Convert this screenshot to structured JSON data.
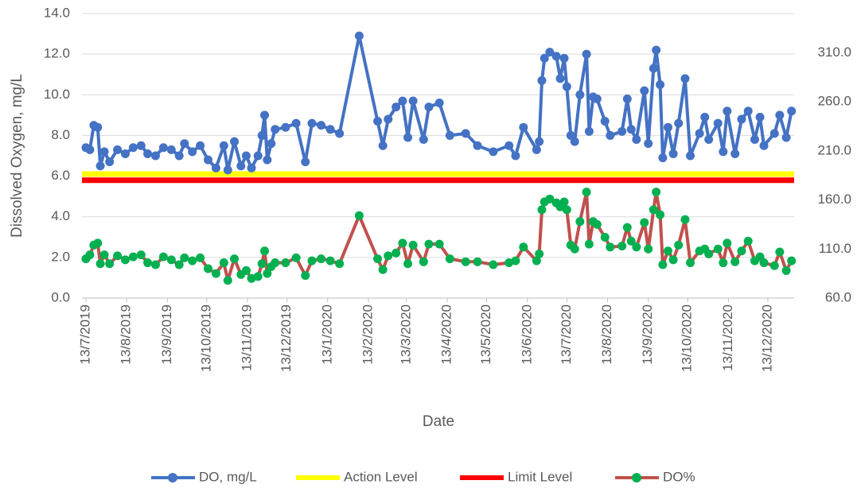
{
  "chart_data": {
    "type": "line",
    "y_axis_label": "Dissolved Oxygen, mg/L",
    "x_axis_label": "Date",
    "xlim": [
      "2019-07-10",
      "2021-01-02"
    ],
    "xticks": [
      {
        "value": "2019-07-13",
        "label": "13/7/2019"
      },
      {
        "value": "2019-08-13",
        "label": "13/8/2019"
      },
      {
        "value": "2019-09-13",
        "label": "13/9/2019"
      },
      {
        "value": "2019-10-13",
        "label": "13/10/2019"
      },
      {
        "value": "2019-11-13",
        "label": "13/11/2019"
      },
      {
        "value": "2019-12-13",
        "label": "13/12/2019"
      },
      {
        "value": "2020-01-13",
        "label": "13/1/2020"
      },
      {
        "value": "2020-02-13",
        "label": "13/2/2020"
      },
      {
        "value": "2020-03-13",
        "label": "13/3/2020"
      },
      {
        "value": "2020-04-13",
        "label": "13/4/2020"
      },
      {
        "value": "2020-05-13",
        "label": "13/5/2020"
      },
      {
        "value": "2020-06-13",
        "label": "13/6/2020"
      },
      {
        "value": "2020-07-13",
        "label": "13/7/2020"
      },
      {
        "value": "2020-08-13",
        "label": "13/8/2020"
      },
      {
        "value": "2020-09-13",
        "label": "13/9/2020"
      },
      {
        "value": "2020-10-13",
        "label": "13/10/2020"
      },
      {
        "value": "2020-11-13",
        "label": "13/11/2020"
      },
      {
        "value": "2020-12-13",
        "label": "13/12/2020"
      }
    ],
    "ylim": [
      0,
      14
    ],
    "yticks": [
      {
        "value": 0,
        "label": "0.0"
      },
      {
        "value": 2,
        "label": "2.0"
      },
      {
        "value": 4,
        "label": "4.0"
      },
      {
        "value": 6,
        "label": "6.0"
      },
      {
        "value": 8,
        "label": "8.0"
      },
      {
        "value": 10,
        "label": "10.0"
      },
      {
        "value": 12,
        "label": "12.0"
      },
      {
        "value": 14,
        "label": "14.0"
      }
    ],
    "y2lim": [
      60,
      350
    ],
    "y2ticks": [
      {
        "value": 60,
        "label": "60.0"
      },
      {
        "value": 110,
        "label": "110.0"
      },
      {
        "value": 160,
        "label": "160.0"
      },
      {
        "value": 210,
        "label": "210.0"
      },
      {
        "value": 260,
        "label": "260.0"
      },
      {
        "value": 310,
        "label": "310.0"
      }
    ],
    "grid": true,
    "legend": "bottom",
    "x": [
      "2019-07-13",
      "2019-07-16",
      "2019-07-19",
      "2019-07-22",
      "2019-07-24",
      "2019-07-27",
      "2019-07-31",
      "2019-08-06",
      "2019-08-12",
      "2019-08-18",
      "2019-08-24",
      "2019-08-29",
      "2019-09-04",
      "2019-09-10",
      "2019-09-16",
      "2019-09-22",
      "2019-09-26",
      "2019-10-02",
      "2019-10-08",
      "2019-10-14",
      "2019-10-20",
      "2019-10-26",
      "2019-10-29",
      "2019-11-03",
      "2019-11-08",
      "2019-11-12",
      "2019-11-16",
      "2019-11-21",
      "2019-11-24",
      "2019-11-26",
      "2019-11-28",
      "2019-12-01",
      "2019-12-04",
      "2019-12-12",
      "2019-12-20",
      "2019-12-27",
      "2020-01-01",
      "2020-01-08",
      "2020-01-15",
      "2020-01-22",
      "2020-02-06",
      "2020-02-20",
      "2020-02-24",
      "2020-02-28",
      "2020-03-05",
      "2020-03-10",
      "2020-03-14",
      "2020-03-18",
      "2020-03-26",
      "2020-03-30",
      "2020-04-07",
      "2020-04-15",
      "2020-04-27",
      "2020-05-06",
      "2020-05-18",
      "2020-05-30",
      "2020-06-04",
      "2020-06-10",
      "2020-06-20",
      "2020-06-22",
      "2020-06-24",
      "2020-06-26",
      "2020-06-30",
      "2020-07-05",
      "2020-07-08",
      "2020-07-11",
      "2020-07-13",
      "2020-07-16",
      "2020-07-19",
      "2020-07-23",
      "2020-07-28",
      "2020-07-30",
      "2020-08-02",
      "2020-08-05",
      "2020-08-11",
      "2020-08-15",
      "2020-08-24",
      "2020-08-28",
      "2020-08-31",
      "2020-09-04",
      "2020-09-10",
      "2020-09-13",
      "2020-09-17",
      "2020-09-19",
      "2020-09-22",
      "2020-09-24",
      "2020-09-28",
      "2020-10-02",
      "2020-10-06",
      "2020-10-11",
      "2020-10-15",
      "2020-10-22",
      "2020-10-26",
      "2020-10-29",
      "2020-11-05",
      "2020-11-09",
      "2020-11-12",
      "2020-11-18",
      "2020-11-23",
      "2020-11-28",
      "2020-12-03",
      "2020-12-07",
      "2020-12-10",
      "2020-12-18",
      "2020-12-22",
      "2020-12-27",
      "2020-12-31"
    ],
    "series": [
      {
        "name": "DO, mg/L",
        "color": "#4472c4",
        "marker_color": "#4472c4",
        "values": [
          7.4,
          7.3,
          8.5,
          8.4,
          6.5,
          7.2,
          6.7,
          7.3,
          7.1,
          7.4,
          7.5,
          7.1,
          7.0,
          7.4,
          7.3,
          7.0,
          7.6,
          7.2,
          7.5,
          6.8,
          6.4,
          7.5,
          6.3,
          7.7,
          6.5,
          7.0,
          6.4,
          7.0,
          8.0,
          9.0,
          6.8,
          7.6,
          8.3,
          8.4,
          8.6,
          6.7,
          8.6,
          8.5,
          8.3,
          8.1,
          12.9,
          8.7,
          7.5,
          8.8,
          9.4,
          9.7,
          7.9,
          9.7,
          7.8,
          9.4,
          9.6,
          8.0,
          8.1,
          7.5,
          7.2,
          7.5,
          7.0,
          8.4,
          7.3,
          7.7,
          10.7,
          11.8,
          12.1,
          11.9,
          10.8,
          11.8,
          10.4,
          8.0,
          7.7,
          10.0,
          12.0,
          8.2,
          9.9,
          9.8,
          8.7,
          8.0,
          8.2,
          9.8,
          8.3,
          7.8,
          10.2,
          7.6,
          11.3,
          12.2,
          10.5,
          6.9,
          8.4,
          7.1,
          8.6,
          10.8,
          7.0,
          8.1,
          8.9,
          7.8,
          8.6,
          7.2,
          9.2,
          7.1,
          8.8,
          9.2,
          7.8,
          8.9,
          7.5,
          8.1,
          9.0,
          7.9,
          9.2
        ]
      },
      {
        "name": "Action Level",
        "color": "#ffff00",
        "x": [
          "2019-07-10",
          "2021-01-02"
        ],
        "values": [
          6.1,
          6.1
        ]
      },
      {
        "name": "Limit Level",
        "color": "#ff0000",
        "x": [
          "2019-07-10",
          "2021-01-02"
        ],
        "values": [
          5.8,
          5.8
        ]
      },
      {
        "name": "DO%",
        "color": "#c0504d",
        "marker_color": "#00b050",
        "axis": "y2",
        "values": [
          100,
          104,
          114,
          116,
          95,
          104,
          95,
          103,
          99,
          102,
          104,
          96,
          94,
          102,
          99,
          94,
          101,
          98,
          101,
          90,
          85,
          96,
          78,
          100,
          84,
          88,
          80,
          82,
          95,
          108,
          85,
          92,
          96,
          96,
          101,
          83,
          98,
          100,
          98,
          95,
          144,
          100,
          89,
          103,
          106,
          116,
          95,
          114,
          97,
          115,
          115,
          100,
          97,
          97,
          94,
          96,
          98,
          112,
          98,
          105,
          150,
          158,
          161,
          157,
          153,
          158,
          150,
          114,
          110,
          138,
          168,
          115,
          138,
          135,
          122,
          112,
          113,
          132,
          118,
          112,
          137,
          110,
          150,
          168,
          145,
          94,
          108,
          99,
          114,
          140,
          96,
          108,
          110,
          105,
          110,
          96,
          116,
          97,
          108,
          118,
          98,
          102,
          96,
          93,
          107,
          88,
          98
        ]
      }
    ]
  }
}
